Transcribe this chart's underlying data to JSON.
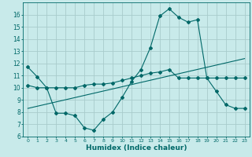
{
  "xlabel": "Humidex (Indice chaleur)",
  "background_color": "#c8eaea",
  "grid_color": "#a8cccc",
  "line_color": "#006868",
  "xlim": [
    -0.5,
    23.5
  ],
  "ylim": [
    6,
    17
  ],
  "yticks": [
    6,
    7,
    8,
    9,
    10,
    11,
    12,
    13,
    14,
    15,
    16
  ],
  "xticks": [
    0,
    1,
    2,
    3,
    4,
    5,
    6,
    7,
    8,
    9,
    10,
    11,
    12,
    13,
    14,
    15,
    16,
    17,
    18,
    19,
    20,
    21,
    22,
    23
  ],
  "line1_x": [
    0,
    1,
    2,
    3,
    4,
    5,
    6,
    7,
    8,
    9,
    10,
    11,
    12,
    13,
    14,
    15,
    16,
    17,
    18,
    19,
    20,
    21,
    22,
    23
  ],
  "line1_y": [
    11.7,
    10.9,
    10.0,
    7.9,
    7.9,
    7.7,
    6.7,
    6.5,
    7.4,
    8.0,
    9.2,
    10.5,
    11.5,
    13.3,
    15.9,
    16.5,
    15.8,
    15.4,
    15.6,
    10.8,
    9.7,
    8.6,
    8.3,
    8.3
  ],
  "line2_x": [
    0,
    1,
    2,
    3,
    4,
    5,
    6,
    7,
    8,
    9,
    10,
    11,
    12,
    13,
    14,
    15,
    16,
    17,
    18,
    19,
    20,
    21,
    22,
    23
  ],
  "line2_y": [
    10.2,
    10.0,
    10.0,
    10.0,
    10.0,
    10.0,
    10.2,
    10.3,
    10.3,
    10.4,
    10.6,
    10.8,
    11.0,
    11.2,
    11.3,
    11.5,
    10.8,
    10.8,
    10.8,
    10.8,
    10.8,
    10.8,
    10.8,
    10.8
  ],
  "line3_x": [
    0,
    23
  ],
  "line3_y": [
    8.3,
    12.4
  ]
}
